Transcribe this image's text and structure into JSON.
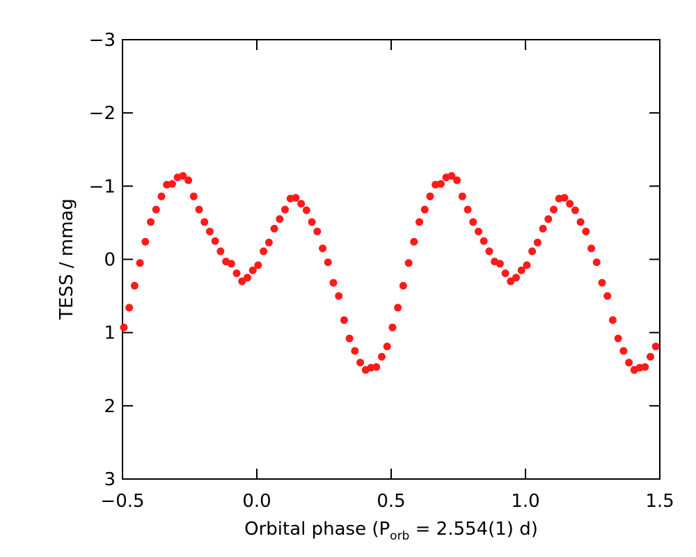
{
  "chart_data": {
    "type": "scatter",
    "x_label": {
      "main": "Orbital phase (P",
      "subscript": "orb",
      "rest": " = 2.554(1) d)"
    },
    "y_label": "TESS / mmag",
    "xlim": [
      -0.5,
      1.5
    ],
    "xticks": [
      {
        "value": -0.5,
        "label": "−0.5"
      },
      {
        "value": 0.0,
        "label": "0.0"
      },
      {
        "value": 0.5,
        "label": "0.5"
      },
      {
        "value": 1.0,
        "label": "1.0"
      },
      {
        "value": 1.5,
        "label": "1.5"
      }
    ],
    "ylim": [
      3,
      -3
    ],
    "yticks": [
      {
        "value": -3,
        "label": "−3"
      },
      {
        "value": -2,
        "label": "−2"
      },
      {
        "value": -1,
        "label": "−1"
      },
      0,
      1,
      2,
      3
    ],
    "series": [
      {
        "color": "#ff1a1a",
        "x": [
          -0.495,
          -0.475,
          -0.455,
          -0.435,
          -0.415,
          -0.395,
          -0.375,
          -0.355,
          -0.335,
          -0.315,
          -0.295,
          -0.275,
          -0.255,
          -0.235,
          -0.215,
          -0.195,
          -0.175,
          -0.155,
          -0.135,
          -0.115,
          -0.095,
          -0.075,
          -0.055,
          -0.035,
          -0.015,
          0.005,
          0.025,
          0.045,
          0.065,
          0.085,
          0.105,
          0.125,
          0.145,
          0.165,
          0.185,
          0.205,
          0.225,
          0.245,
          0.265,
          0.285,
          0.305,
          0.325,
          0.345,
          0.365,
          0.385,
          0.405,
          0.425,
          0.445,
          0.465,
          0.485,
          0.505,
          0.525,
          0.545,
          0.565,
          0.585,
          0.605,
          0.625,
          0.645,
          0.665,
          0.685,
          0.705,
          0.725,
          0.745,
          0.765,
          0.785,
          0.805,
          0.825,
          0.845,
          0.865,
          0.885,
          0.905,
          0.925,
          0.945,
          0.965,
          0.985,
          1.005,
          1.025,
          1.045,
          1.065,
          1.085,
          1.105,
          1.125,
          1.145,
          1.165,
          1.185,
          1.205,
          1.225,
          1.245,
          1.265,
          1.285,
          1.305,
          1.325,
          1.345,
          1.365,
          1.385,
          1.405,
          1.425,
          1.445,
          1.465,
          1.485
        ],
        "values": [
          0.93,
          0.66,
          0.36,
          0.05,
          -0.24,
          -0.51,
          -0.68,
          -0.86,
          -1.02,
          -1.03,
          -1.12,
          -1.14,
          -1.08,
          -0.86,
          -0.68,
          -0.51,
          -0.38,
          -0.25,
          -0.11,
          0.03,
          0.06,
          0.19,
          0.3,
          0.25,
          0.15,
          0.08,
          -0.11,
          -0.23,
          -0.42,
          -0.55,
          -0.68,
          -0.83,
          -0.84,
          -0.76,
          -0.67,
          -0.51,
          -0.38,
          -0.15,
          0.04,
          0.32,
          0.5,
          0.83,
          1.08,
          1.25,
          1.41,
          1.51,
          1.48,
          1.47,
          1.33,
          1.19,
          0.93,
          0.66,
          0.36,
          0.05,
          -0.24,
          -0.51,
          -0.68,
          -0.86,
          -1.02,
          -1.03,
          -1.12,
          -1.14,
          -1.08,
          -0.86,
          -0.68,
          -0.51,
          -0.38,
          -0.25,
          -0.11,
          0.03,
          0.06,
          0.19,
          0.3,
          0.25,
          0.15,
          0.08,
          -0.11,
          -0.23,
          -0.42,
          -0.55,
          -0.68,
          -0.83,
          -0.84,
          -0.76,
          -0.67,
          -0.51,
          -0.38,
          -0.15,
          0.04,
          0.32,
          0.5,
          0.83,
          1.08,
          1.25,
          1.41,
          1.51,
          1.48,
          1.47,
          1.33,
          1.19
        ]
      }
    ]
  }
}
